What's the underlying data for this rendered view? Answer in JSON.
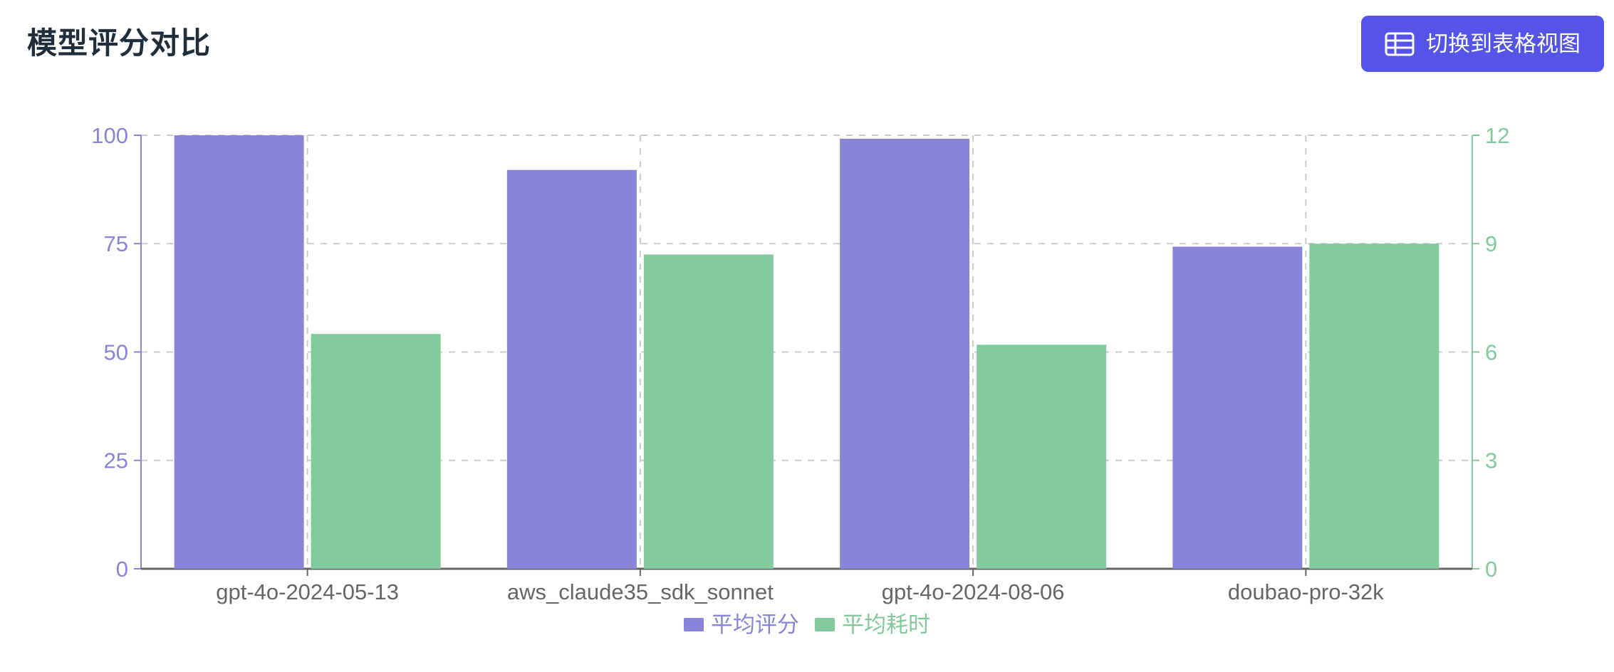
{
  "page": {
    "title": "模型评分对比",
    "background": "#ffffff",
    "title_color": "#1f2d3d"
  },
  "toolbar": {
    "switch_view_label": "切换到表格视图",
    "switch_view_icon": "table-icon",
    "button_color": "#5553e8",
    "button_text_color": "#ffffff"
  },
  "chart_data": {
    "type": "bar",
    "title": "模型评分对比",
    "categories": [
      "gpt-4o-2024-05-13",
      "aws_claude35_sdk_sonnet",
      "gpt-4o-2024-08-06",
      "doubao-pro-32k"
    ],
    "series": [
      {
        "name": "平均评分",
        "axis": "left",
        "color": "#8884d8",
        "values": [
          100,
          92,
          99.2,
          74.3
        ]
      },
      {
        "name": "平均耗时",
        "axis": "right",
        "color": "#82ca9d",
        "values": [
          6.5,
          8.7,
          6.2,
          9
        ]
      }
    ],
    "left_axis": {
      "min": 0,
      "max": 100,
      "ticks": [
        0,
        25,
        50,
        75,
        100
      ],
      "color": "#8884d8"
    },
    "right_axis": {
      "min": 0,
      "max": 12,
      "ticks": [
        0,
        3,
        6,
        9,
        12
      ],
      "color": "#82ca9d"
    },
    "x_axis": {
      "color": "#666666"
    },
    "grid": {
      "stroke": "#cccccc",
      "dash": "9 9",
      "horizontal": true,
      "vertical": true
    },
    "legend": {
      "position": "bottom"
    }
  }
}
